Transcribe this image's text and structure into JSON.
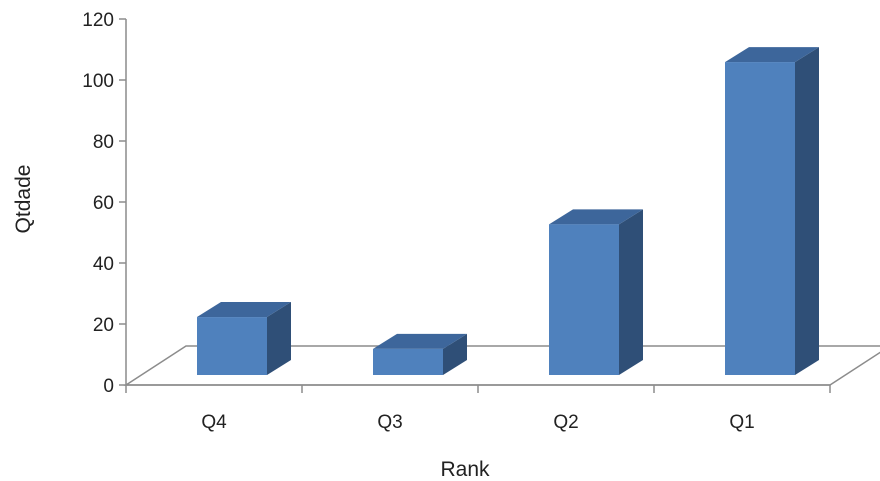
{
  "chart_data": {
    "type": "bar",
    "categories": [
      "Q4",
      "Q3",
      "Q2",
      "Q1"
    ],
    "values": [
      20,
      9,
      52,
      108
    ],
    "xlabel": "Rank",
    "ylabel": "Qtdade",
    "ylim": [
      0,
      120
    ],
    "yticks": [
      0,
      20,
      40,
      60,
      80,
      100,
      120
    ],
    "grid": false,
    "legend": "none",
    "style": "3d-column"
  },
  "colors": {
    "bar_front": "#4f81bd",
    "bar_side": "#2f4f77",
    "bar_top": "#3d669b",
    "axis": "#8c8c8c",
    "floor": "#ffffff"
  }
}
